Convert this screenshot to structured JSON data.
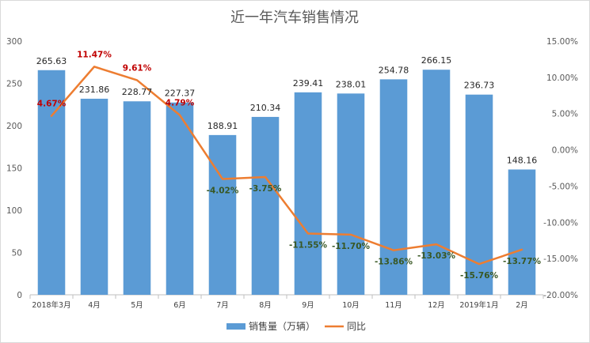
{
  "chart_data": {
    "type": "bar",
    "title": "近一年汽车销售情况",
    "categories": [
      "2018年3月",
      "4月",
      "5月",
      "6月",
      "7月",
      "8月",
      "9月",
      "10月",
      "11月",
      "12月",
      "2019年1月",
      "2月"
    ],
    "series": [
      {
        "name": "销售量（万辆）",
        "type": "bar",
        "axis": "left",
        "color": "#5B9BD5",
        "values": [
          265.63,
          231.86,
          228.77,
          227.37,
          188.91,
          210.34,
          239.41,
          238.01,
          254.78,
          266.15,
          236.73,
          148.16
        ],
        "labels": [
          "265.63",
          "231.86",
          "228.77",
          "227.37",
          "188.91",
          "210.34",
          "239.41",
          "238.01",
          "254.78",
          "266.15",
          "236.73",
          "148.16"
        ]
      },
      {
        "name": "同比",
        "type": "line",
        "axis": "right",
        "color": "#ED7D31",
        "values": [
          4.67,
          11.47,
          9.61,
          4.79,
          -4.02,
          -3.75,
          -11.55,
          -11.7,
          -13.86,
          -13.03,
          -15.76,
          -13.77
        ],
        "labels": [
          "4.67%",
          "11.47%",
          "9.61%",
          "4.79%",
          "-4.02%",
          "-3.75%",
          "-11.55%",
          "-11.70%",
          "-13.86%",
          "-13.03%",
          "-15.76%",
          "-13.77%"
        ],
        "positive_label_color": "#C00000",
        "negative_label_color": "#385723"
      }
    ],
    "y_left": {
      "ylim": [
        0,
        300
      ],
      "ticks": [
        0,
        50,
        100,
        150,
        200,
        250,
        300
      ],
      "tick_labels": [
        "0",
        "50",
        "100",
        "150",
        "200",
        "250",
        "300"
      ]
    },
    "y_right": {
      "ylim": [
        -20,
        15
      ],
      "ticks": [
        15,
        10,
        5,
        0,
        -5,
        -10,
        -15,
        -20
      ],
      "tick_labels": [
        "15.00%",
        "10.00%",
        "5.00%",
        "0.00%",
        "-5.00%",
        "-10.00%",
        "-15.00%",
        "-20.00%"
      ]
    },
    "xlabel": "",
    "ylabel": "",
    "grid": false,
    "legend": {
      "position": "bottom",
      "entries": [
        "销售量（万辆）",
        "同比"
      ]
    }
  }
}
